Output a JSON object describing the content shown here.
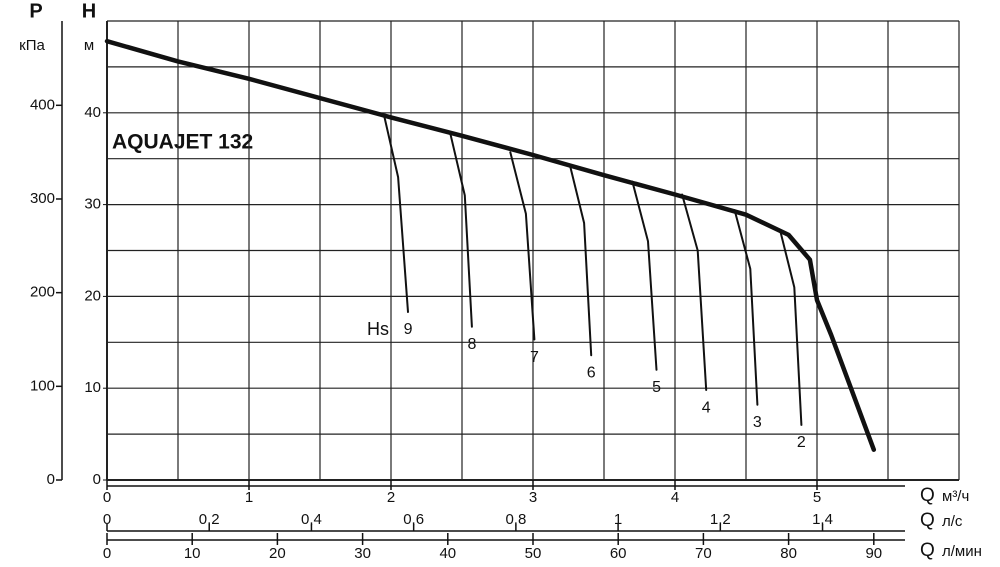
{
  "chart_data": {
    "type": "line",
    "title": "AQUAJET 132",
    "y_label": "H",
    "y_unit": "м",
    "y2_label": "P",
    "y2_unit": "кПа",
    "x_label": "Q",
    "x_unit": "м³/ч",
    "x2_label": "Q",
    "x2_unit": "л/с",
    "x3_label": "Q",
    "x3_unit": "л/мин",
    "xlim": [
      0,
      6
    ],
    "xticks": [
      0,
      1,
      2,
      3,
      4,
      5
    ],
    "x2lim": [
      0,
      1.667
    ],
    "x2ticks": [
      0,
      {
        "value": 0.2,
        "label": "0,2"
      },
      {
        "value": 0.4,
        "label": "0,4"
      },
      {
        "value": 0.6,
        "label": "0,6"
      },
      {
        "value": 0.8,
        "label": "0,8"
      },
      1,
      {
        "value": 1.2,
        "label": "1,2"
      },
      {
        "value": 1.4,
        "label": "1,4"
      }
    ],
    "x3lim": [
      0,
      100
    ],
    "x3ticks": [
      0,
      10,
      20,
      30,
      40,
      50,
      60,
      70,
      80,
      90
    ],
    "ylim": [
      0,
      50
    ],
    "yticks": [
      0,
      10,
      20,
      30,
      40
    ],
    "y2lim": [
      0,
      490
    ],
    "y2ticks": [
      0,
      100,
      200,
      300,
      400
    ],
    "grid": true,
    "xgrid": [
      0,
      0.5,
      1,
      1.5,
      2,
      2.5,
      3,
      3.5,
      4,
      4.5,
      5,
      5.5,
      6
    ],
    "ygrid": [
      0,
      5,
      10,
      15,
      20,
      25,
      30,
      35,
      40,
      45,
      50
    ],
    "series_label": "Hs",
    "series": [
      {
        "color": "#111111",
        "x": [
          0,
          0.5,
          1,
          2,
          2.5,
          3,
          3.5,
          4,
          4.5,
          4.8,
          4.95,
          5.0,
          5.1,
          5.4
        ],
        "values": [
          47.8,
          45.6,
          43.7,
          39.5,
          37.5,
          35.4,
          33.2,
          31.1,
          28.9,
          26.7,
          24,
          19.6,
          15.8,
          3.3
        ]
      },
      {
        "name": "9",
        "color": "#111111",
        "x": [
          1.95,
          2.05,
          2.12
        ],
        "values": [
          39.8,
          33,
          18.3
        ]
      },
      {
        "name": "8",
        "color": "#111111",
        "x": [
          2.42,
          2.52,
          2.57
        ],
        "values": [
          37.6,
          31,
          16.7
        ]
      },
      {
        "name": "7",
        "color": "#111111",
        "x": [
          2.84,
          2.95,
          3.01
        ],
        "values": [
          35.7,
          29,
          15.3
        ]
      },
      {
        "name": "6",
        "color": "#111111",
        "x": [
          3.26,
          3.36,
          3.41
        ],
        "values": [
          34.3,
          28,
          13.6
        ]
      },
      {
        "name": "5",
        "color": "#111111",
        "x": [
          3.7,
          3.81,
          3.87
        ],
        "values": [
          32.5,
          26,
          12
        ]
      },
      {
        "name": "4",
        "color": "#111111",
        "x": [
          4.05,
          4.16,
          4.22
        ],
        "values": [
          31.1,
          25,
          9.8
        ]
      },
      {
        "name": "3",
        "color": "#111111",
        "x": [
          4.42,
          4.53,
          4.58
        ],
        "values": [
          29.4,
          23,
          8.2
        ]
      },
      {
        "name": "2",
        "color": "#111111",
        "x": [
          4.74,
          4.84,
          4.89
        ],
        "values": [
          27.2,
          21,
          6
        ]
      }
    ]
  }
}
